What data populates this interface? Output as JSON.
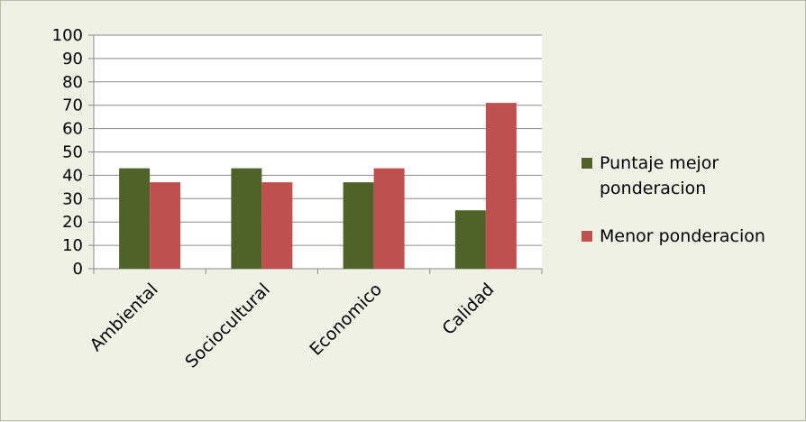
{
  "chart_data": {
    "type": "bar",
    "categories": [
      "Ambiental",
      "Sociocultural",
      "Economico",
      "Calidad"
    ],
    "series": [
      {
        "name": "Puntaje mejor ponderacion",
        "legend_lines": [
          "Puntaje mejor",
          "ponderacion"
        ],
        "color": "#4f6228",
        "values": [
          43,
          43,
          37,
          25
        ]
      },
      {
        "name": "Menor ponderacion",
        "legend_lines": [
          "Menor ponderacion"
        ],
        "color": "#c0504d",
        "values": [
          37,
          37,
          43,
          71
        ]
      }
    ],
    "ylim": [
      0,
      100
    ],
    "yticks": [
      "0",
      "10",
      "20",
      "30",
      "40",
      "50",
      "60",
      "70",
      "80",
      "90",
      "100"
    ],
    "grid": true,
    "legend_position": "right",
    "plot_background": "#ffffff",
    "page_background": "#eef1e4"
  }
}
